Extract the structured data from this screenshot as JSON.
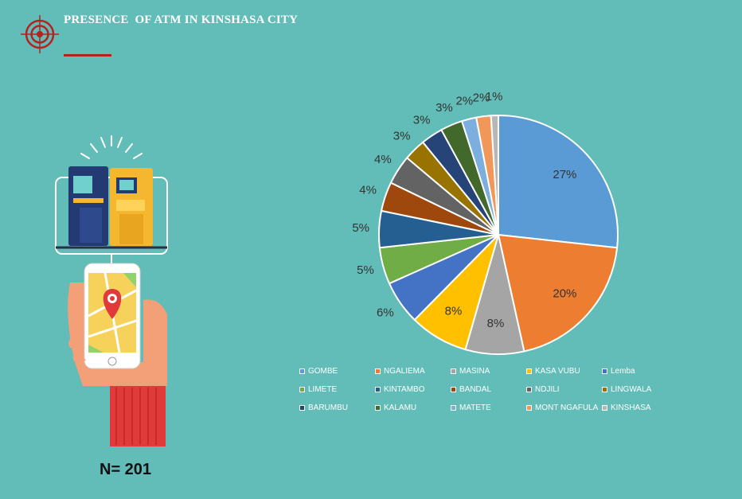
{
  "header": {
    "title": "PRESENCE  OF ATM IN KINSHASA CITY"
  },
  "sample": {
    "label": "N= 201"
  },
  "chart_data": {
    "type": "pie",
    "title": "PRESENCE  OF ATM IN KINSHASA CITY",
    "legend_position": "bottom",
    "categories": [
      "GOMBE",
      "NGALIEMA",
      "MASINA",
      "KASA VUBU",
      "Lemba",
      "LIMETE",
      "KINTAMBO",
      "BANDAL",
      "NDJILI",
      "LINGWALA",
      "BARUMBU",
      "KALAMU",
      "MATETE",
      "MONT NGAFULA",
      "KINSHASA"
    ],
    "values": [
      27,
      20,
      8,
      8,
      6,
      5,
      5,
      4,
      4,
      3,
      3,
      3,
      2,
      2,
      1
    ],
    "labels": [
      "27%",
      "20%",
      "8%",
      "8%",
      "6%",
      "5%",
      "5%",
      "4%",
      "4%",
      "3%",
      "3%",
      "3%",
      "2%",
      "2%",
      "1%"
    ],
    "colors": [
      "#5b9bd5",
      "#ed7d31",
      "#a5a5a5",
      "#ffc000",
      "#4472c4",
      "#70ad47",
      "#255e91",
      "#9e480e",
      "#636363",
      "#997300",
      "#264478",
      "#43682b",
      "#7cafdd",
      "#f1975a",
      "#b7b7b7"
    ]
  }
}
